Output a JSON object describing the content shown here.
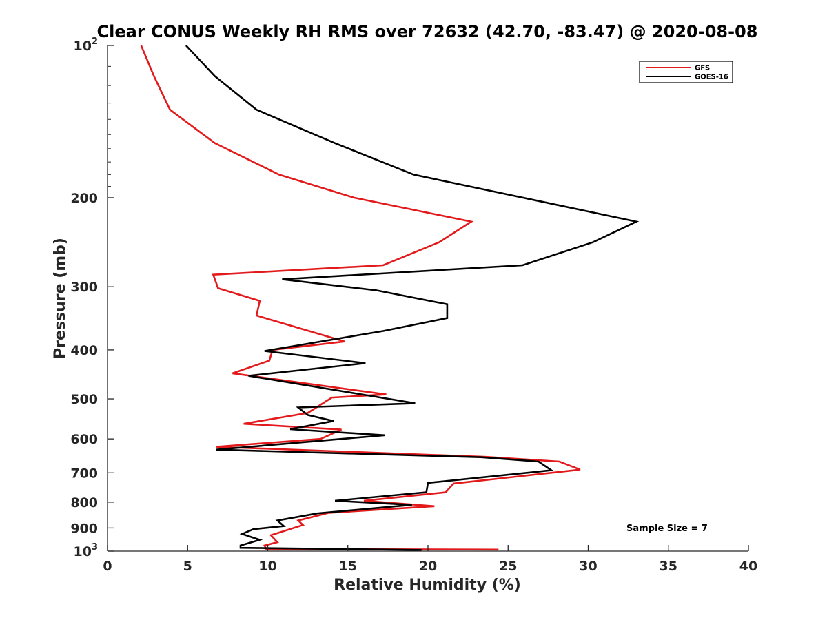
{
  "chart_data": {
    "type": "line",
    "title": "Clear CONUS Weekly RH RMS over 72632 (42.70, -83.47) @ 2020-08-08",
    "xlabel": "Relative Humidity (%)",
    "ylabel": "Pressure (mb)",
    "xlim": [
      0,
      40
    ],
    "ylim": [
      100,
      1000
    ],
    "y_scale": "log",
    "y_reversed": true,
    "x_ticks": [
      "0",
      "5",
      "10",
      "15",
      "20",
      "25",
      "30",
      "35",
      "40"
    ],
    "y_ticks": [
      {
        "value": 100,
        "label": "10",
        "sup": "2"
      },
      {
        "value": 200,
        "label": "200"
      },
      {
        "value": 300,
        "label": "300"
      },
      {
        "value": 400,
        "label": "400"
      },
      {
        "value": 500,
        "label": "500"
      },
      {
        "value": 600,
        "label": "600"
      },
      {
        "value": 700,
        "label": "700"
      },
      {
        "value": 800,
        "label": "800"
      },
      {
        "value": 900,
        "label": "900"
      },
      {
        "value": 1000,
        "label": "10",
        "sup": "3"
      }
    ],
    "legend_position": "top-right",
    "annotation": "Sample Size = 7",
    "series": [
      {
        "name": "GFS",
        "color": "#e31a1c",
        "points": [
          [
            2.1,
            100
          ],
          [
            2.9,
            115
          ],
          [
            3.9,
            134
          ],
          [
            6.7,
            156
          ],
          [
            10.7,
            180
          ],
          [
            15.4,
            200
          ],
          [
            22.7,
            223
          ],
          [
            20.7,
            245
          ],
          [
            17.2,
            272
          ],
          [
            6.6,
            284
          ],
          [
            6.9,
            302
          ],
          [
            9.5,
            320
          ],
          [
            9.3,
            342
          ],
          [
            14.8,
            385
          ],
          [
            10.3,
            400
          ],
          [
            10.1,
            420
          ],
          [
            7.8,
            445
          ],
          [
            17.4,
            490
          ],
          [
            14.0,
            497
          ],
          [
            12.5,
            533
          ],
          [
            8.5,
            560
          ],
          [
            14.6,
            575
          ],
          [
            13.3,
            600
          ],
          [
            6.8,
            622
          ],
          [
            23.6,
            651
          ],
          [
            28.2,
            665
          ],
          [
            29.5,
            690
          ],
          [
            21.6,
            735
          ],
          [
            21.1,
            765
          ],
          [
            16.0,
            795
          ],
          [
            20.4,
            815
          ],
          [
            13.8,
            840
          ],
          [
            11.9,
            870
          ],
          [
            12.2,
            888
          ],
          [
            10.2,
            930
          ],
          [
            10.6,
            960
          ],
          [
            9.8,
            975
          ],
          [
            9.9,
            990
          ],
          [
            24.4,
            993
          ]
        ]
      },
      {
        "name": "GOES-16",
        "color": "#000000",
        "points": [
          [
            4.9,
            100
          ],
          [
            6.7,
            115
          ],
          [
            9.3,
            134
          ],
          [
            14.2,
            156
          ],
          [
            19.1,
            180
          ],
          [
            33.0,
            223
          ],
          [
            30.3,
            245
          ],
          [
            25.9,
            272
          ],
          [
            10.9,
            290
          ],
          [
            16.8,
            305
          ],
          [
            21.2,
            325
          ],
          [
            21.2,
            346
          ],
          [
            17.2,
            367
          ],
          [
            9.8,
            402
          ],
          [
            16.1,
            425
          ],
          [
            8.8,
            450
          ],
          [
            19.2,
            510
          ],
          [
            11.9,
            520
          ],
          [
            12.5,
            538
          ],
          [
            14.1,
            553
          ],
          [
            11.4,
            574
          ],
          [
            17.3,
            590
          ],
          [
            6.8,
            630
          ],
          [
            23.3,
            652
          ],
          [
            26.9,
            665
          ],
          [
            27.7,
            692
          ],
          [
            20.0,
            733
          ],
          [
            19.9,
            765
          ],
          [
            14.2,
            795
          ],
          [
            19.0,
            810
          ],
          [
            13.1,
            842
          ],
          [
            10.6,
            870
          ],
          [
            11.0,
            892
          ],
          [
            9.1,
            905
          ],
          [
            8.4,
            925
          ],
          [
            9.5,
            950
          ],
          [
            8.3,
            975
          ],
          [
            8.3,
            985
          ],
          [
            19.6,
            995
          ]
        ]
      }
    ]
  }
}
